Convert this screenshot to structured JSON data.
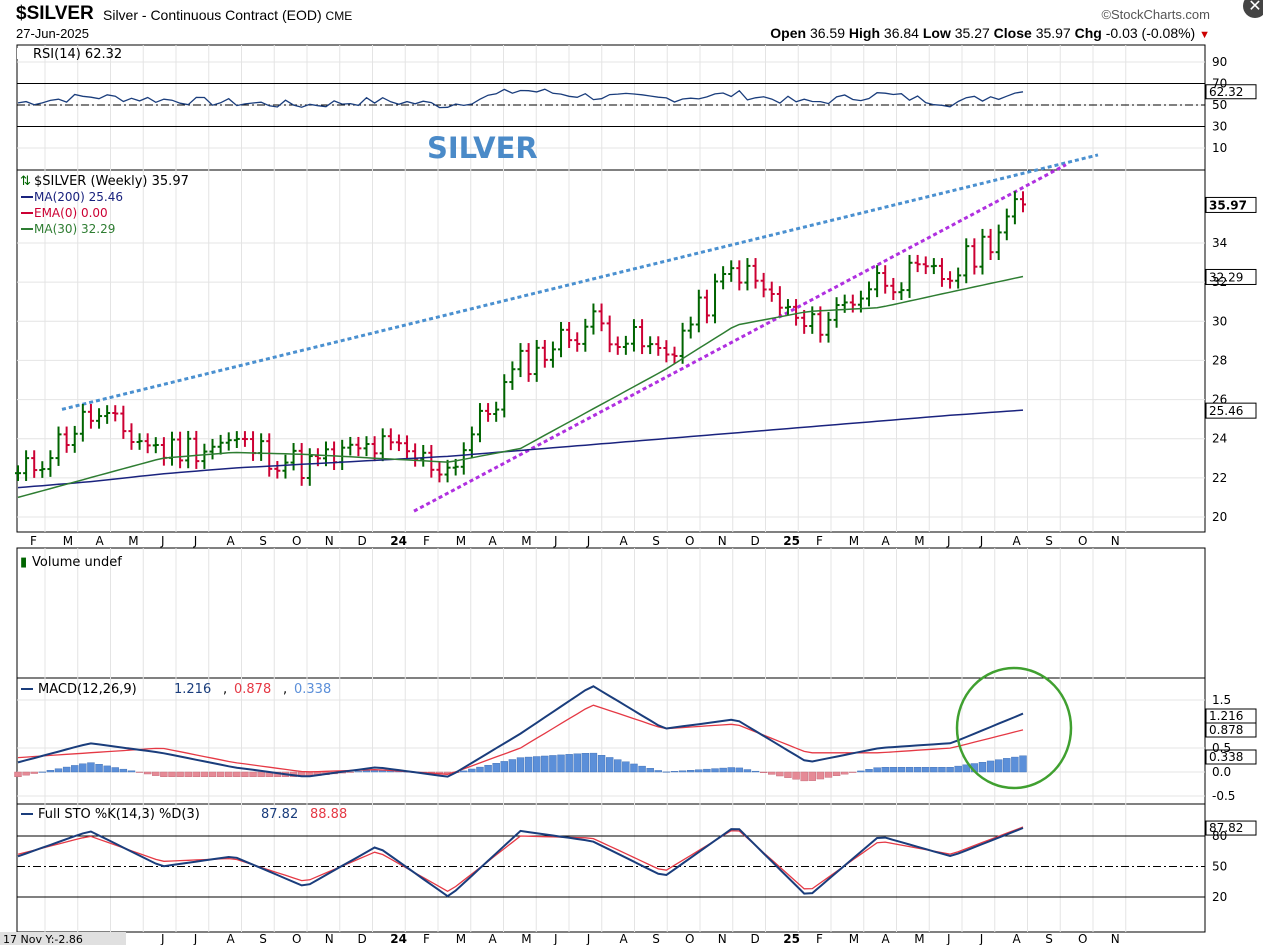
{
  "header": {
    "symbol": "$SILVER",
    "description": "Silver - Continuous Contract (EOD)",
    "exchange": "CME",
    "date": "27-Jun-2025",
    "brand": "©StockCharts.com",
    "open_label": "Open",
    "open": "36.59",
    "high_label": "High",
    "high": "36.84",
    "low_label": "Low",
    "low": "35.27",
    "close_label": "Close",
    "close": "35.97",
    "chg_label": "Chg",
    "chg": "-0.03 (-0.08%)",
    "close_icon": "close-x-icon"
  },
  "rsi": {
    "legend": "RSI(14) 62.32",
    "current": "62.32",
    "ticks": [
      "90",
      "70",
      "50",
      "30",
      "10"
    ]
  },
  "annotation": "SILVER",
  "price": {
    "legend_main": "$SILVER (Weekly) 35.97",
    "legend_ma200": "MA(200) 25.46",
    "legend_ema": "EMA(0) 0.00",
    "legend_ma30": "MA(30) 32.29",
    "ticks": [
      "34",
      "32",
      "30",
      "28",
      "26",
      "24",
      "22",
      "20"
    ],
    "last_close": "35.97",
    "last_ma30": "32.29",
    "last_ma200": "25.46"
  },
  "volume": {
    "legend": "Volume undef"
  },
  "macd": {
    "legend_prefix": "MACD(12,26,9)",
    "v_macd": "1.216",
    "v_signal": "0.878",
    "v_hist": "0.338",
    "ticks": [
      "1.5",
      "0.5",
      "0.0",
      "-0.5"
    ],
    "sep1": ",",
    "sep2": ","
  },
  "sto": {
    "legend_prefix": "Full STO %K(14,3) %D(3)",
    "v_k": "87.82",
    "v_d": "88.88",
    "current": "87.82",
    "ticks": [
      "80",
      "50",
      "20"
    ]
  },
  "x_axis": {
    "labels": [
      "F",
      "M",
      "A",
      "M",
      "J",
      "J",
      "A",
      "S",
      "O",
      "N",
      "D",
      "24",
      "F",
      "M",
      "A",
      "M",
      "J",
      "J",
      "A",
      "S",
      "O",
      "N",
      "D",
      "25",
      "F",
      "M",
      "A",
      "M",
      "J",
      "J",
      "A",
      "S",
      "O",
      "N"
    ],
    "bottom_note": "17 Nov Y:-2.86"
  },
  "colors": {
    "up": "#006400",
    "down": "#cc0033",
    "ma200": "#1a237e",
    "ma30": "#2e7d32",
    "macd": "#1a3d7c",
    "signal": "#e53945",
    "hist_pos": "#5b8fd9",
    "hist_neg": "#e58a96",
    "trend_upper": "#4a90d0",
    "trend_lower": "#b030e0",
    "circle": "#40a030",
    "annotation": "#4a8ac8"
  },
  "chart_data": [
    {
      "type": "line",
      "title": "RSI(14)",
      "x": [
        "2023-02",
        "2023-04",
        "2023-06",
        "2023-08",
        "2023-10",
        "2023-12",
        "2024-02",
        "2024-04",
        "2024-06",
        "2024-08",
        "2024-10",
        "2024-12",
        "2025-02",
        "2025-04",
        "2025-06"
      ],
      "series": [
        {
          "name": "RSI(14)",
          "values": [
            52,
            58,
            55,
            52,
            50,
            54,
            50,
            64,
            58,
            56,
            60,
            52,
            60,
            52,
            62.32
          ]
        }
      ],
      "ylim": [
        0,
        100
      ]
    },
    {
      "type": "line",
      "title": "$SILVER (Weekly)",
      "x": [
        "2023-02",
        "2023-04",
        "2023-06",
        "2023-08",
        "2023-10",
        "2023-12",
        "2024-02",
        "2024-04",
        "2024-06",
        "2024-08",
        "2024-10",
        "2024-12",
        "2025-02",
        "2025-04",
        "2025-06"
      ],
      "series": [
        {
          "name": "$SILVER",
          "values": [
            22.0,
            25.2,
            23.4,
            23.8,
            22.6,
            23.6,
            22.5,
            27.8,
            30.0,
            28.2,
            32.8,
            29.5,
            32.2,
            32.3,
            35.97
          ]
        },
        {
          "name": "MA(200)",
          "values": [
            21.5,
            21.8,
            22.2,
            22.5,
            22.7,
            22.9,
            23.1,
            23.4,
            23.7,
            24.0,
            24.3,
            24.6,
            24.9,
            25.2,
            25.46
          ]
        },
        {
          "name": "MA(30)",
          "values": [
            21.0,
            22.0,
            23.0,
            23.3,
            23.2,
            23.0,
            22.8,
            23.5,
            25.5,
            27.5,
            29.8,
            30.5,
            30.7,
            31.5,
            32.29
          ]
        }
      ],
      "ylim": [
        19.5,
        38
      ]
    },
    {
      "type": "line",
      "title": "MACD(12,26,9)",
      "x": [
        "2023-02",
        "2023-04",
        "2023-06",
        "2023-08",
        "2023-10",
        "2023-12",
        "2024-02",
        "2024-04",
        "2024-06",
        "2024-08",
        "2024-10",
        "2024-12",
        "2025-02",
        "2025-04",
        "2025-06"
      ],
      "series": [
        {
          "name": "MACD",
          "values": [
            0.2,
            0.6,
            0.4,
            0.1,
            -0.1,
            0.1,
            -0.1,
            0.8,
            1.8,
            0.9,
            1.1,
            0.2,
            0.5,
            0.6,
            1.216
          ]
        },
        {
          "name": "Signal",
          "values": [
            0.3,
            0.4,
            0.5,
            0.2,
            0.0,
            0.05,
            -0.05,
            0.5,
            1.4,
            0.9,
            1.0,
            0.4,
            0.4,
            0.5,
            0.878
          ]
        },
        {
          "name": "Histogram",
          "values": [
            -0.1,
            0.2,
            -0.1,
            -0.1,
            -0.1,
            0.05,
            -0.05,
            0.3,
            0.4,
            0.0,
            0.1,
            -0.2,
            0.1,
            0.1,
            0.338
          ]
        }
      ],
      "ylim": [
        -0.8,
        1.8
      ]
    },
    {
      "type": "line",
      "title": "Full STO %K(14,3) %D(3)",
      "x": [
        "2023-02",
        "2023-04",
        "2023-06",
        "2023-08",
        "2023-10",
        "2023-12",
        "2024-02",
        "2024-04",
        "2024-06",
        "2024-08",
        "2024-10",
        "2024-12",
        "2025-02",
        "2025-04",
        "2025-06"
      ],
      "series": [
        {
          "name": "%K",
          "values": [
            60,
            85,
            50,
            60,
            30,
            70,
            20,
            85,
            75,
            40,
            90,
            20,
            80,
            60,
            87.82
          ]
        },
        {
          "name": "%D",
          "values": [
            62,
            80,
            55,
            58,
            35,
            65,
            25,
            80,
            78,
            45,
            88,
            25,
            75,
            62,
            88.88
          ]
        }
      ],
      "ylim": [
        0,
        100
      ]
    }
  ]
}
